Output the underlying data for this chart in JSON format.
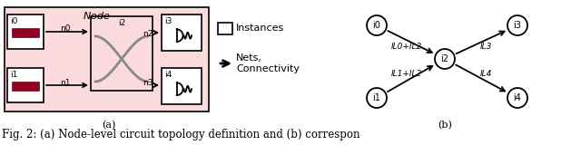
{
  "fig_width": 6.4,
  "fig_height": 1.71,
  "dpi": 100,
  "bg_color": "#ffffff",
  "pink_bg": "#fadadd",
  "caption_a": "(a)",
  "caption_b": "(b)",
  "caption_text": "ig. 2: (a) Node-level circuit topology definition and (b) correspon"
}
